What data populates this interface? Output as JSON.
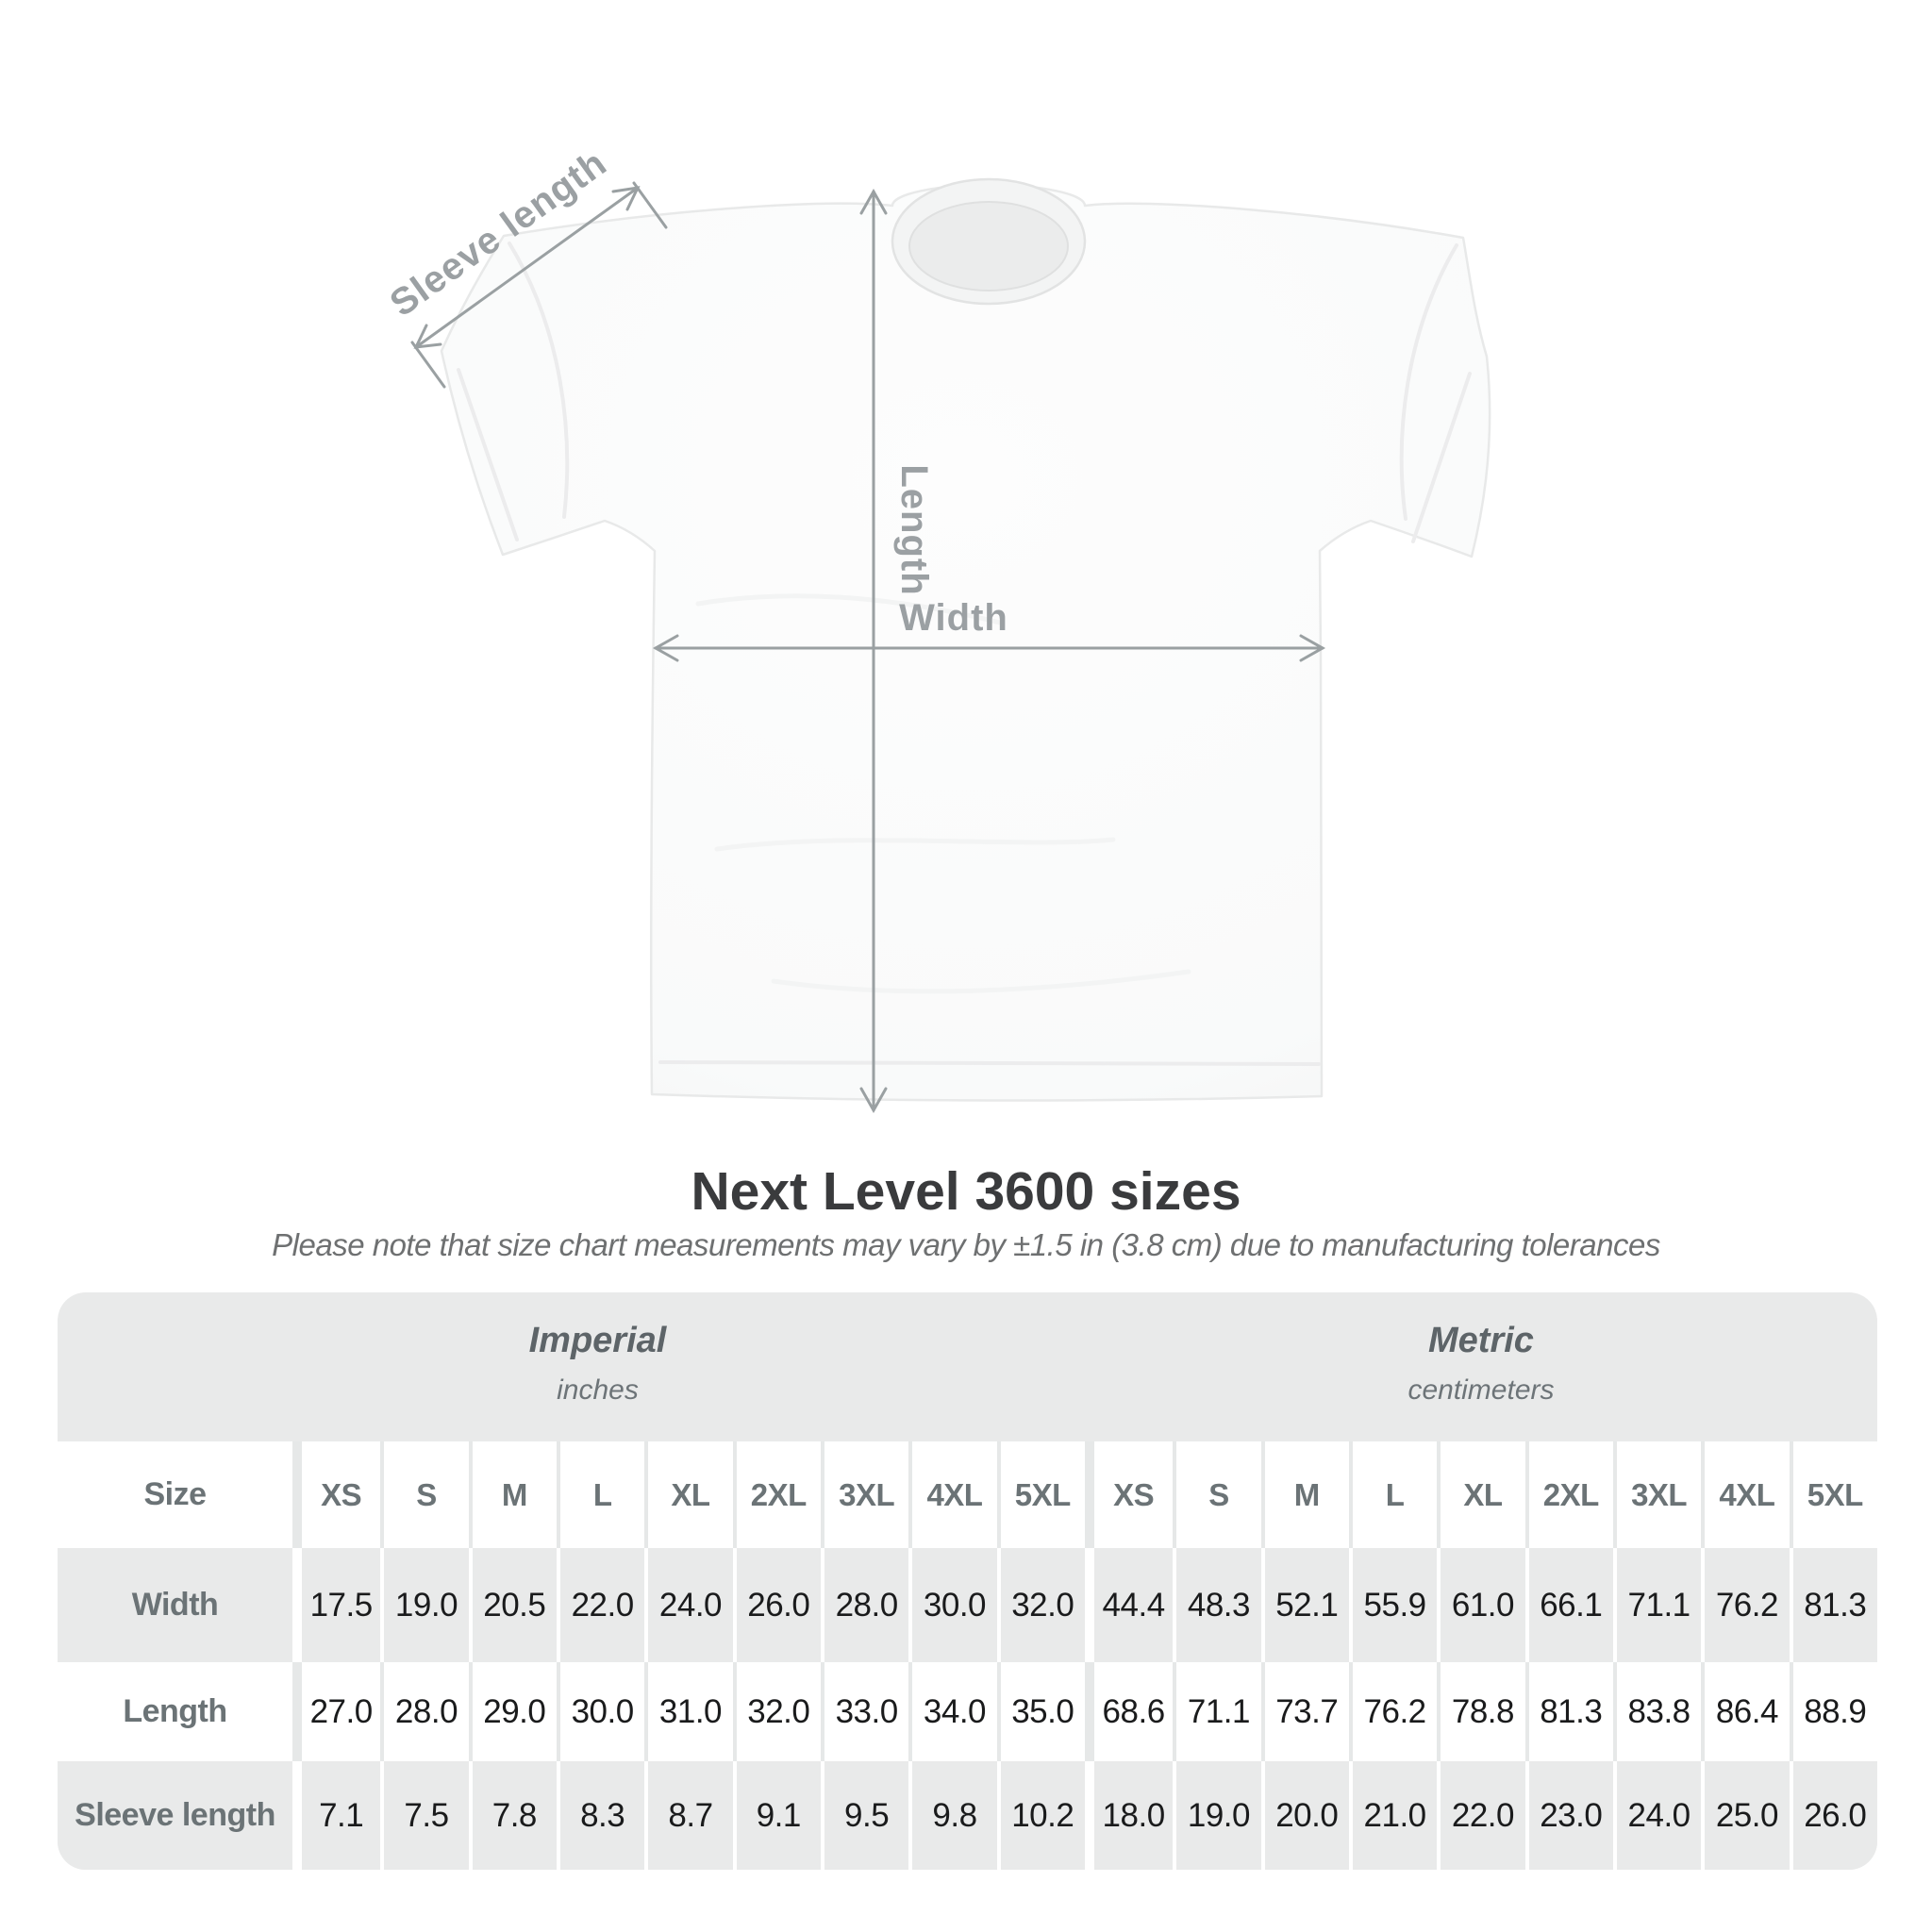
{
  "shirt_diagram": {
    "labels": {
      "sleeve_length": "Sleeve length",
      "length": "Length",
      "width": "Width"
    }
  },
  "heading": {
    "title": "Next Level 3600 sizes",
    "subtitle": "Please note that size chart measurements may vary by ±1.5 in (3.8 cm) due to manufacturing tolerances"
  },
  "size_chart": {
    "size_column_header": "Size",
    "groups": [
      {
        "label": "Imperial",
        "unit": "inches"
      },
      {
        "label": "Metric",
        "unit": "centimeters"
      }
    ],
    "sizes": [
      "XS",
      "S",
      "M",
      "L",
      "XL",
      "2XL",
      "3XL",
      "4XL",
      "5XL"
    ],
    "rows": [
      {
        "label": "Width",
        "imperial": [
          "17.5",
          "19.0",
          "20.5",
          "22.0",
          "24.0",
          "26.0",
          "28.0",
          "30.0",
          "32.0"
        ],
        "metric": [
          "44.4",
          "48.3",
          "52.1",
          "55.9",
          "61.0",
          "66.1",
          "71.1",
          "76.2",
          "81.3"
        ]
      },
      {
        "label": "Length",
        "imperial": [
          "27.0",
          "28.0",
          "29.0",
          "30.0",
          "31.0",
          "32.0",
          "33.0",
          "34.0",
          "35.0"
        ],
        "metric": [
          "68.6",
          "71.1",
          "73.7",
          "76.2",
          "78.8",
          "81.3",
          "83.8",
          "86.4",
          "88.9"
        ]
      },
      {
        "label": "Sleeve length",
        "imperial": [
          "7.1",
          "7.5",
          "7.8",
          "8.3",
          "8.7",
          "9.1",
          "9.5",
          "9.8",
          "10.2"
        ],
        "metric": [
          "18.0",
          "19.0",
          "20.0",
          "21.0",
          "22.0",
          "23.0",
          "24.0",
          "25.0",
          "26.0"
        ]
      }
    ]
  },
  "chart_data": {
    "type": "table",
    "title": "Next Level 3600 sizes",
    "columns": [
      "Size",
      "XS",
      "S",
      "M",
      "L",
      "XL",
      "2XL",
      "3XL",
      "4XL",
      "5XL"
    ],
    "imperial_inches": {
      "Width": [
        17.5,
        19.0,
        20.5,
        22.0,
        24.0,
        26.0,
        28.0,
        30.0,
        32.0
      ],
      "Length": [
        27.0,
        28.0,
        29.0,
        30.0,
        31.0,
        32.0,
        33.0,
        34.0,
        35.0
      ],
      "Sleeve length": [
        7.1,
        7.5,
        7.8,
        8.3,
        8.7,
        9.1,
        9.5,
        9.8,
        10.2
      ]
    },
    "metric_centimeters": {
      "Width": [
        44.4,
        48.3,
        52.1,
        55.9,
        61.0,
        66.1,
        71.1,
        76.2,
        81.3
      ],
      "Length": [
        68.6,
        71.1,
        73.7,
        76.2,
        78.8,
        81.3,
        83.8,
        86.4,
        88.9
      ],
      "Sleeve length": [
        18.0,
        19.0,
        20.0,
        21.0,
        22.0,
        23.0,
        24.0,
        25.0,
        26.0
      ]
    }
  },
  "colors": {
    "annotation_gray": "#9aa0a2",
    "card_background": "#e9eaea",
    "title_text": "#3a3b3d",
    "header_text": "#6b7376",
    "value_text": "#1a1b1c"
  }
}
